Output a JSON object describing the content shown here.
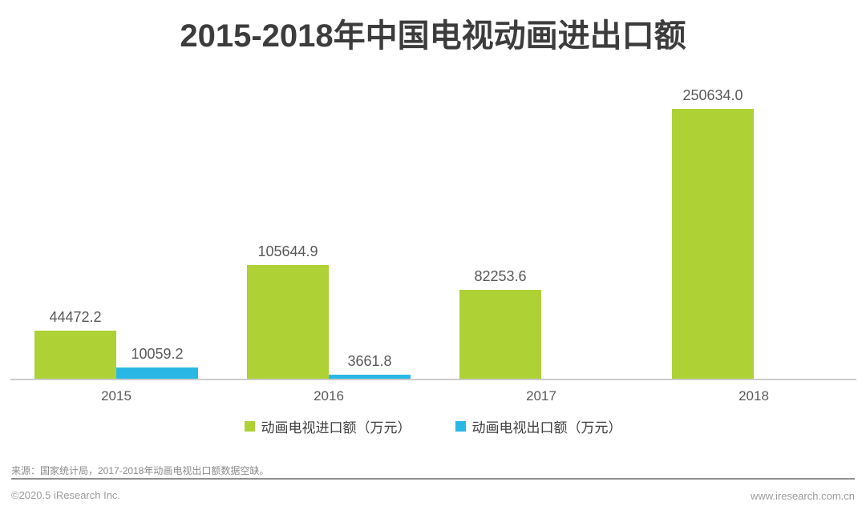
{
  "title": "2015-2018年中国电视动画进出口额",
  "chart_data": {
    "type": "bar",
    "title": "2015-2018年中国电视动画进出口额",
    "categories": [
      "2015",
      "2016",
      "2017",
      "2018"
    ],
    "series": [
      {
        "name": "动画电视进口额（万元）",
        "color": "#aed136",
        "values": [
          44472.2,
          105644.9,
          82253.6,
          250634.0
        ],
        "labels": [
          "44472.2",
          "105644.9",
          "82253.6",
          "250634.0"
        ]
      },
      {
        "name": "动画电视出口额（万元）",
        "color": "#29b8e5",
        "values": [
          10059.2,
          3661.8,
          null,
          null
        ],
        "labels": [
          "10059.2",
          "3661.8",
          "",
          ""
        ]
      }
    ],
    "xlabel": "",
    "ylabel": "",
    "ylim": [
      0,
      250634
    ],
    "grid": false,
    "legend_position": "bottom",
    "note": "2017-2018年动画电视出口额数据空缺"
  },
  "footer": {
    "source": "来源：国家统计局，2017-2018年动画电视出口额数据空缺。",
    "copyright": "©2020.5 iResearch Inc.",
    "website": "www.iresearch.com.cn"
  },
  "colors": {
    "import_bar": "#aed136",
    "export_bar": "#29b8e5",
    "axis_line": "#cbcbcb",
    "value_label": "#595959",
    "title_text": "#3c3c3c",
    "footer_text": "#9c9c9c"
  }
}
